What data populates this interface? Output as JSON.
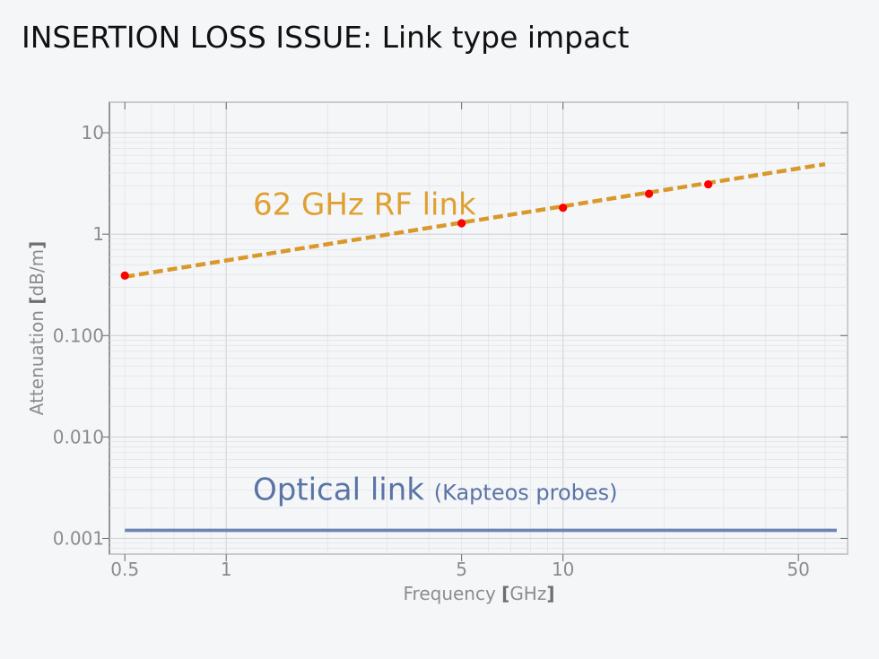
{
  "title": "INSERTION LOSS ISSUE: Link type impact",
  "chart_data": {
    "type": "line",
    "xscale": "log",
    "yscale": "log",
    "xlim": [
      0.45,
      70
    ],
    "ylim": [
      0.0007,
      20
    ],
    "grid": true,
    "xlabel": {
      "text": "Frequency ",
      "lb": "[",
      "unit": "GHz",
      "rb": "]"
    },
    "ylabel": {
      "text": "Attenuation ",
      "lb": "[",
      "unit": "dB/m",
      "rb": "]"
    },
    "x_ticks": [
      {
        "value": 0.5,
        "label": "0.5"
      },
      {
        "value": 1,
        "label": "1"
      },
      {
        "value": 5,
        "label": "5"
      },
      {
        "value": 10,
        "label": "10"
      },
      {
        "value": 50,
        "label": "50"
      }
    ],
    "y_ticks": [
      {
        "value": 10,
        "label": "10"
      },
      {
        "value": 1,
        "label": "1"
      },
      {
        "value": 0.1,
        "label": "0.100"
      },
      {
        "value": 0.01,
        "label": "0.010"
      },
      {
        "value": 0.001,
        "label": "0.001"
      }
    ],
    "series": [
      {
        "name": "62 GHz RF link",
        "style": "dashed",
        "color": "#d9982a",
        "x": [
          0.5,
          60
        ],
        "y": [
          0.38,
          4.9
        ]
      },
      {
        "name": "RF measured points",
        "style": "markers",
        "color": "#ff0000",
        "x": [
          0.5,
          5,
          10,
          18,
          27
        ],
        "y": [
          0.39,
          1.28,
          1.82,
          2.5,
          3.1
        ]
      },
      {
        "name": "Optical link",
        "name_suffix": "(Kapteos probes)",
        "style": "solid",
        "color": "#6d84b4",
        "x": [
          0.5,
          65
        ],
        "y": [
          0.0012,
          0.0012
        ]
      }
    ]
  }
}
